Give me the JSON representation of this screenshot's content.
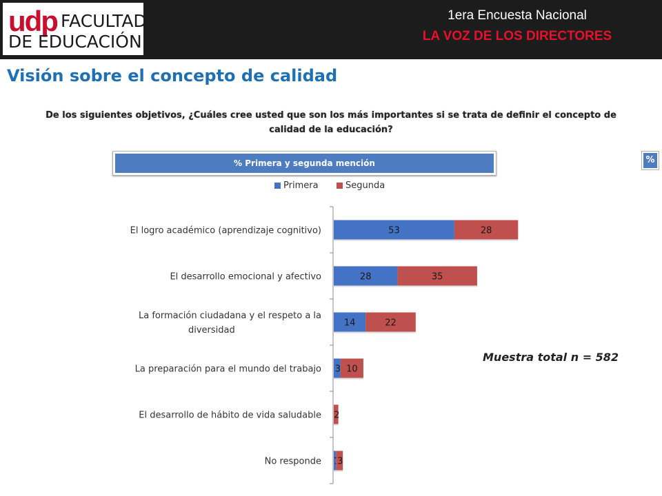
{
  "header": {
    "logo": {
      "brand": "udp",
      "line1": "FACULTAD",
      "line2": "DE EDUCACIÓN"
    },
    "survey_line1": "1era Encuesta Nacional",
    "survey_line2": "LA VOZ DE LOS DIRECTORES"
  },
  "page_title": "Visión sobre el concepto de calidad",
  "question": "De los siguientes objetivos, ¿Cuáles cree usted que son los más importantes si se trata de definir el concepto de calidad de la educación?",
  "mention_banner": "% Primera y segunda mención",
  "percent_badge": "%",
  "sample_note": "Muestra total n = 582",
  "chart_data": {
    "type": "bar",
    "orientation": "horizontal",
    "stacked": true,
    "categories": [
      [
        "El logro académico (aprendizaje cognitivo)"
      ],
      [
        "El desarrollo emocional y afectivo"
      ],
      [
        "La formación ciudadana y el respeto a la",
        "diversidad"
      ],
      [
        "La preparación para el mundo del trabajo"
      ],
      [
        "El desarrollo de hábito de vida saludable"
      ],
      [
        "No responde"
      ]
    ],
    "series": [
      {
        "name": "Primera",
        "color": "#4472c4",
        "values": [
          53,
          28,
          14,
          3,
          0,
          1
        ]
      },
      {
        "name": "Segunda",
        "color": "#c0504d",
        "values": [
          28,
          35,
          22,
          10,
          2,
          3
        ]
      }
    ],
    "value_labels": [
      [
        "53",
        "28",
        "14",
        "3",
        "",
        "1"
      ],
      [
        "28",
        "35",
        "22",
        "10",
        "2",
        "3"
      ]
    ],
    "xlim": [
      0,
      140
    ],
    "legend": "top",
    "grid": false
  }
}
